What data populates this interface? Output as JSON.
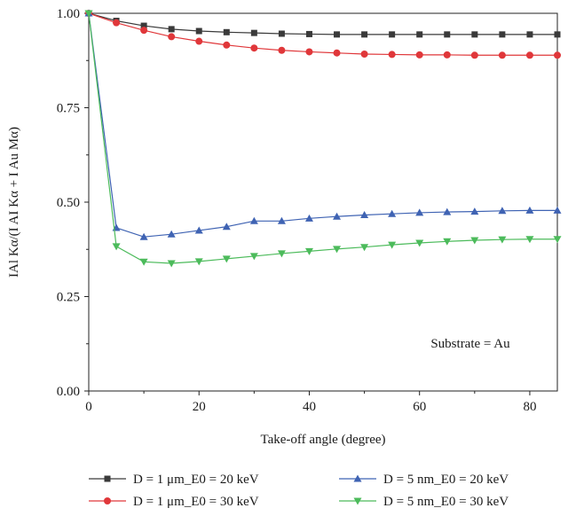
{
  "chart_data": {
    "type": "line",
    "title": "",
    "xlabel": "Take-off angle (degree)",
    "ylabel": "IAl Kα/(I AI Kα + I Au Mα)",
    "xlim": [
      0,
      85
    ],
    "ylim": [
      0,
      1.0
    ],
    "x_ticks": [
      "0",
      "20",
      "40",
      "60",
      "80"
    ],
    "y_ticks": [
      "0.00",
      "0.25",
      "0.50",
      "0.75",
      "1.00"
    ],
    "grid": false,
    "legend_position": "bottom",
    "annotation": "Substrate = Au",
    "x": [
      0,
      5,
      10,
      15,
      20,
      25,
      30,
      35,
      40,
      45,
      50,
      55,
      60,
      65,
      70,
      75,
      80,
      85
    ],
    "series": [
      {
        "name": "D = 1 μm_E0 = 20 keV",
        "marker": "square",
        "color": "#3a3a3a",
        "values": [
          1.0,
          0.98,
          0.967,
          0.958,
          0.953,
          0.95,
          0.948,
          0.946,
          0.945,
          0.944,
          0.944,
          0.944,
          0.944,
          0.944,
          0.944,
          0.944,
          0.944,
          0.944
        ]
      },
      {
        "name": "D = 1 μm_E0 = 30 keV",
        "marker": "circle",
        "color": "#e0373a",
        "values": [
          1.0,
          0.975,
          0.955,
          0.938,
          0.926,
          0.916,
          0.908,
          0.902,
          0.898,
          0.895,
          0.892,
          0.891,
          0.89,
          0.89,
          0.889,
          0.889,
          0.889,
          0.889
        ]
      },
      {
        "name": "D = 5 nm_E0 = 20 keV",
        "marker": "triangle-up",
        "color": "#3f63b3",
        "values": [
          1.0,
          0.432,
          0.408,
          0.415,
          0.425,
          0.435,
          0.45,
          0.45,
          0.457,
          0.462,
          0.466,
          0.469,
          0.472,
          0.474,
          0.475,
          0.477,
          0.478,
          0.478
        ]
      },
      {
        "name": "D = 5 nm_E0 = 30 keV",
        "marker": "triangle-down",
        "color": "#4cbb5b",
        "values": [
          1.0,
          0.383,
          0.342,
          0.338,
          0.343,
          0.35,
          0.357,
          0.364,
          0.37,
          0.376,
          0.381,
          0.387,
          0.392,
          0.396,
          0.399,
          0.401,
          0.402,
          0.402
        ]
      }
    ]
  }
}
